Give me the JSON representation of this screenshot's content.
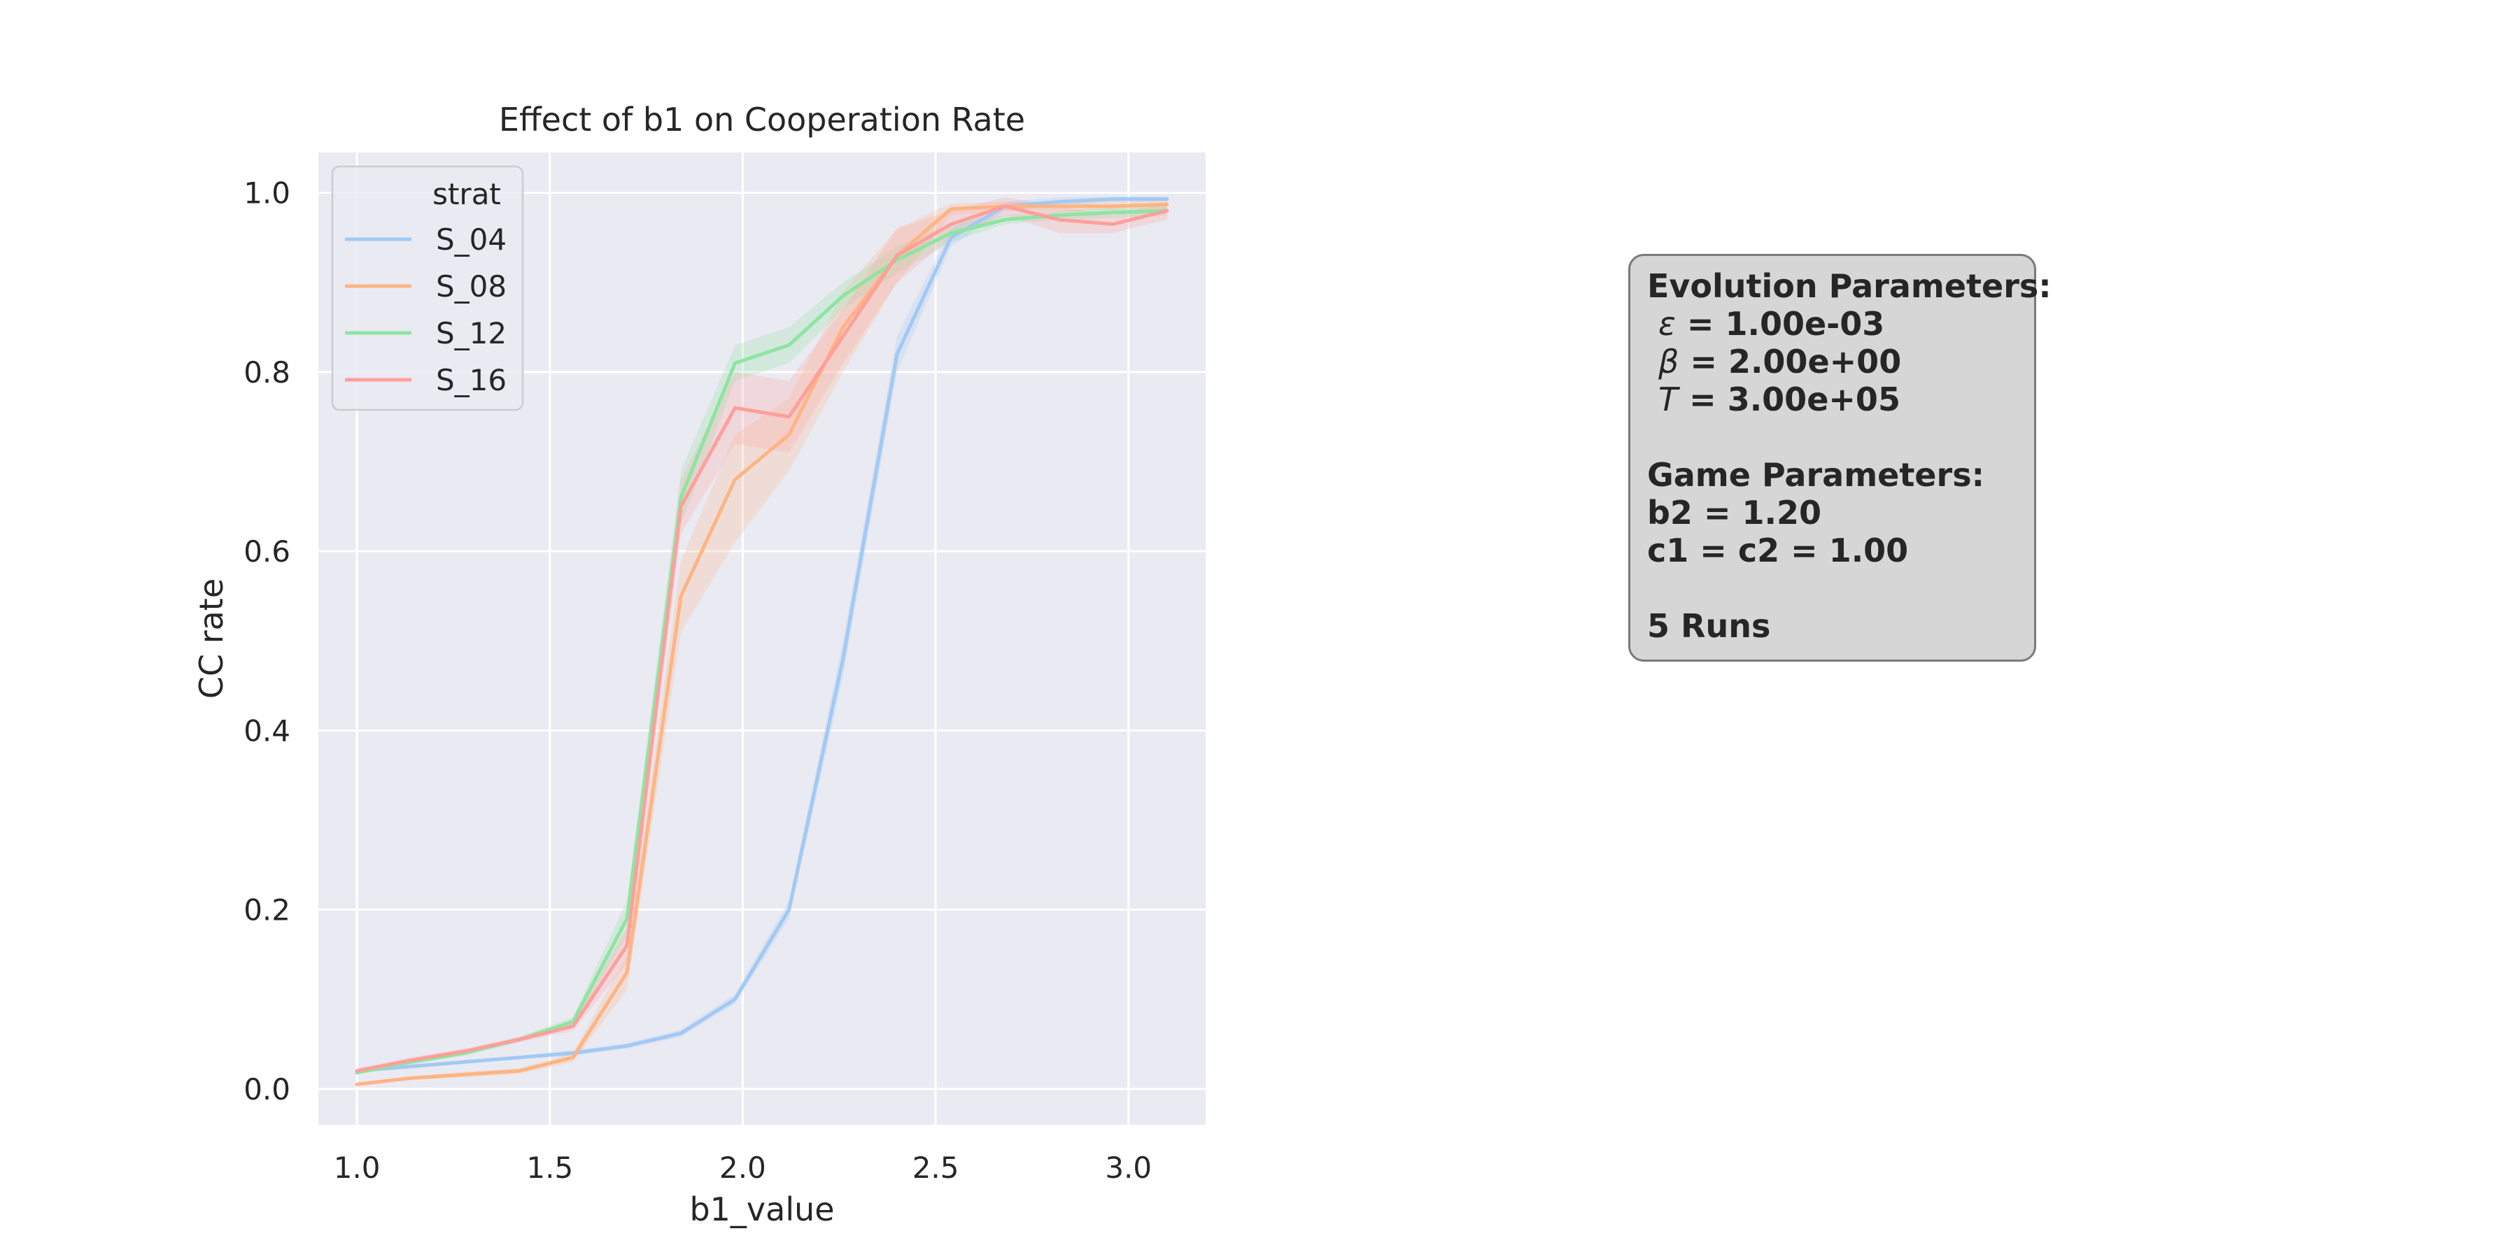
{
  "chart_data": {
    "type": "line",
    "title": "Effect of b1 on Cooperation Rate",
    "xlabel": "b1_value",
    "ylabel": "CC rate",
    "xlim": [
      0.9,
      3.2
    ],
    "ylim": [
      -0.04,
      1.045
    ],
    "xticks": [
      1.0,
      1.5,
      2.0,
      2.5,
      3.0
    ],
    "xtick_labels": [
      "1.0",
      "1.5",
      "2.0",
      "2.5",
      "3.0"
    ],
    "yticks": [
      0.0,
      0.2,
      0.4,
      0.6,
      0.8,
      1.0
    ],
    "ytick_labels": [
      "0.0",
      "0.2",
      "0.4",
      "0.6",
      "0.8",
      "1.0"
    ],
    "grid": true,
    "legend_title": "strat",
    "legend_position": "upper-left",
    "x": [
      1.0,
      1.14,
      1.28,
      1.42,
      1.56,
      1.7,
      1.84,
      1.98,
      2.12,
      2.26,
      2.4,
      2.54,
      2.68,
      2.82,
      2.96,
      3.1
    ],
    "series": [
      {
        "name": "S_04",
        "color": "#a1c9f4",
        "values": [
          0.02,
          0.025,
          0.03,
          0.035,
          0.04,
          0.048,
          0.062,
          0.1,
          0.2,
          0.48,
          0.82,
          0.95,
          0.985,
          0.99,
          0.993,
          0.993
        ],
        "ci_lower": [
          0.018,
          0.023,
          0.028,
          0.033,
          0.037,
          0.045,
          0.058,
          0.095,
          0.19,
          0.46,
          0.8,
          0.94,
          0.98,
          0.985,
          0.99,
          0.99
        ],
        "ci_upper": [
          0.022,
          0.027,
          0.032,
          0.037,
          0.043,
          0.051,
          0.066,
          0.106,
          0.21,
          0.5,
          0.84,
          0.96,
          0.99,
          0.995,
          0.996,
          0.996
        ]
      },
      {
        "name": "S_08",
        "color": "#ffb482",
        "values": [
          0.005,
          0.012,
          0.016,
          0.02,
          0.035,
          0.13,
          0.55,
          0.68,
          0.73,
          0.85,
          0.93,
          0.982,
          0.985,
          0.985,
          0.985,
          0.987
        ],
        "ci_lower": [
          0.003,
          0.01,
          0.013,
          0.017,
          0.03,
          0.11,
          0.51,
          0.61,
          0.69,
          0.8,
          0.9,
          0.975,
          0.98,
          0.98,
          0.98,
          0.982
        ],
        "ci_upper": [
          0.007,
          0.014,
          0.019,
          0.023,
          0.04,
          0.15,
          0.59,
          0.73,
          0.77,
          0.89,
          0.96,
          0.988,
          0.99,
          0.99,
          0.99,
          0.992
        ]
      },
      {
        "name": "S_12",
        "color": "#8de5a1",
        "values": [
          0.018,
          0.03,
          0.04,
          0.055,
          0.075,
          0.19,
          0.66,
          0.81,
          0.83,
          0.885,
          0.925,
          0.955,
          0.97,
          0.975,
          0.978,
          0.98
        ],
        "ci_lower": [
          0.016,
          0.027,
          0.037,
          0.052,
          0.07,
          0.17,
          0.63,
          0.79,
          0.81,
          0.87,
          0.91,
          0.945,
          0.965,
          0.97,
          0.972,
          0.975
        ],
        "ci_upper": [
          0.02,
          0.033,
          0.043,
          0.058,
          0.08,
          0.21,
          0.69,
          0.83,
          0.85,
          0.9,
          0.94,
          0.965,
          0.975,
          0.98,
          0.984,
          0.985
        ]
      },
      {
        "name": "S_16",
        "color": "#ff9f9b",
        "values": [
          0.02,
          0.032,
          0.042,
          0.055,
          0.07,
          0.16,
          0.65,
          0.76,
          0.75,
          0.84,
          0.93,
          0.965,
          0.985,
          0.97,
          0.965,
          0.98
        ],
        "ci_lower": [
          0.017,
          0.029,
          0.039,
          0.052,
          0.065,
          0.14,
          0.62,
          0.72,
          0.71,
          0.81,
          0.9,
          0.95,
          0.975,
          0.955,
          0.955,
          0.97
        ],
        "ci_upper": [
          0.023,
          0.035,
          0.045,
          0.058,
          0.075,
          0.18,
          0.68,
          0.8,
          0.79,
          0.87,
          0.96,
          0.98,
          0.995,
          0.985,
          0.975,
          0.99
        ]
      }
    ]
  },
  "params_box": {
    "evolution_title": "Evolution Parameters:",
    "epsilon_symbol": "ε",
    "epsilon_value": " = 1.00e-03",
    "beta_symbol": "β",
    "beta_value": " = 2.00e+00",
    "t_symbol": "T",
    "t_value": " = 3.00e+05",
    "game_title": "Game Parameters:",
    "b2_line": "b2 = 1.20",
    "c_line": "c1 = c2 = 1.00",
    "runs_line": "5 Runs"
  }
}
